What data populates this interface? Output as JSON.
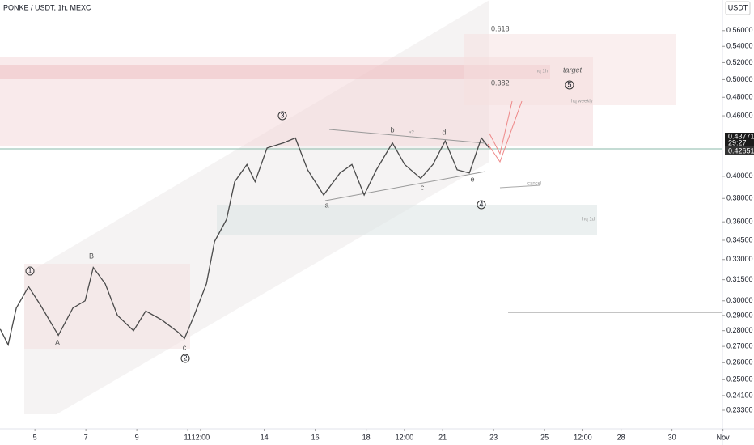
{
  "header": {
    "symbol": "PONKE / USDT, 1h, MEXC",
    "currency": "USDT"
  },
  "price_labels": {
    "high": "0.43771",
    "timer": "29:27",
    "last": "0.42651"
  },
  "annotations": {
    "fib_618": "0.618",
    "fib_382": "0.382",
    "target": "target",
    "hq_weekly": "hq weekly",
    "hq_1h": "hq 1h",
    "hq_1d": "hq 1d",
    "cancel": "cancel",
    "e_q": "e?",
    "wave_1": "1",
    "wave_2": "2",
    "wave_3": "3",
    "wave_4": "4",
    "wave_5": "5",
    "A": "A",
    "B": "B",
    "C": "c",
    "a": "a",
    "b": "b",
    "c": "c",
    "d": "d",
    "e": "e"
  },
  "chart_data": {
    "type": "line",
    "color": "#4a4a4a",
    "log_scale": true,
    "x": [
      3.64,
      3.95,
      4.27,
      4.75,
      5.22,
      5.92,
      6.49,
      6.97,
      7.29,
      7.76,
      8.24,
      8.87,
      9.35,
      9.98,
      10.62,
      10.87,
      11.25,
      11.73,
      12.05,
      12.52,
      12.84,
      13.32,
      13.64,
      14.11,
      14.75,
      15.22,
      15.7,
      16.33,
      16.97,
      17.44,
      17.92,
      18.4,
      19.03,
      19.51,
      20.14,
      20.62,
      21.1,
      21.57,
      22.05,
      22.52,
      22.84
    ],
    "values": [
      0.281,
      0.271,
      0.295,
      0.31,
      0.297,
      0.277,
      0.295,
      0.3,
      0.324,
      0.312,
      0.29,
      0.28,
      0.293,
      0.287,
      0.279,
      0.275,
      0.29,
      0.312,
      0.344,
      0.362,
      0.395,
      0.411,
      0.395,
      0.427,
      0.432,
      0.437,
      0.406,
      0.383,
      0.403,
      0.411,
      0.383,
      0.406,
      0.432,
      0.411,
      0.398,
      0.411,
      0.434,
      0.406,
      0.403,
      0.437,
      0.4265
    ],
    "xlim": [
      3.63,
      31.98
    ],
    "xticks": [
      {
        "value": 5,
        "label": "5"
      },
      {
        "value": 7,
        "label": "7"
      },
      {
        "value": 9,
        "label": "9"
      },
      {
        "value": 11,
        "label": "11"
      },
      {
        "value": 11.5,
        "label": "12:00"
      },
      {
        "value": 14,
        "label": "14"
      },
      {
        "value": 16,
        "label": "16"
      },
      {
        "value": 18,
        "label": "18"
      },
      {
        "value": 19.5,
        "label": "12:00"
      },
      {
        "value": 21,
        "label": "21"
      },
      {
        "value": 23,
        "label": "23"
      },
      {
        "value": 25,
        "label": "25"
      },
      {
        "value": 26.5,
        "label": "12:00"
      },
      {
        "value": 28,
        "label": "28"
      },
      {
        "value": 30,
        "label": "30"
      },
      {
        "value": 32,
        "label": "Nov"
      }
    ],
    "ylim": [
      0.2274,
      0.601
    ],
    "yticks": [
      {
        "value": 0.56,
        "label": "0.56000"
      },
      {
        "value": 0.54,
        "label": "0.54000"
      },
      {
        "value": 0.52,
        "label": "0.52000"
      },
      {
        "value": 0.5,
        "label": "0.50000"
      },
      {
        "value": 0.48,
        "label": "0.48000"
      },
      {
        "value": 0.46,
        "label": "0.46000"
      },
      {
        "value": 0.4,
        "label": "0.40000"
      },
      {
        "value": 0.38,
        "label": "0.38000"
      },
      {
        "value": 0.36,
        "label": "0.36000"
      },
      {
        "value": 0.345,
        "label": "0.34500"
      },
      {
        "value": 0.33,
        "label": "0.33000"
      },
      {
        "value": 0.315,
        "label": "0.31500"
      },
      {
        "value": 0.3,
        "label": "0.30000"
      },
      {
        "value": 0.29,
        "label": "0.29000"
      },
      {
        "value": 0.28,
        "label": "0.28000"
      },
      {
        "value": 0.27,
        "label": "0.27000"
      },
      {
        "value": 0.26,
        "label": "0.26000"
      },
      {
        "value": 0.25,
        "label": "0.25000"
      },
      {
        "value": 0.241,
        "label": "0.24100"
      },
      {
        "value": 0.233,
        "label": "0.23300"
      }
    ]
  }
}
